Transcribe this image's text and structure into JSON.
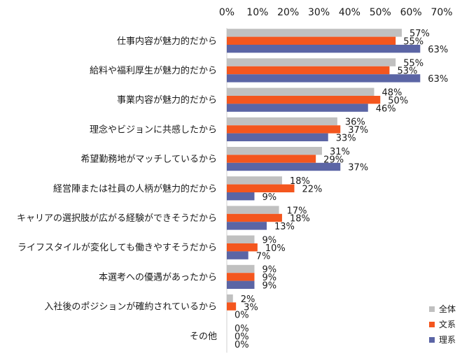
{
  "chart_data": {
    "type": "bar",
    "orientation": "horizontal",
    "title": "",
    "xlabel": "",
    "ylabel": "",
    "xlim": [
      0,
      70
    ],
    "x_ticks": [
      0,
      10,
      20,
      30,
      40,
      50,
      60,
      70
    ],
    "tick_suffix": "%",
    "tick_position": "top",
    "grid": false,
    "legend_position": "bottom-right",
    "categories": [
      "仕事内容が魅力的だから",
      "給料や福利厚生が魅力的だから",
      "事業内容が魅力的だから",
      "理念やビジョンに共感したから",
      "希望勤務地がマッチしているから",
      "経営陣または社員の人柄が魅力的だから",
      "キャリアの選択肢が広がる経験ができそうだから",
      "ライフスタイルが変化しても働きやすそうだから",
      "本選考への優遇があったから",
      "入社後のポジションが確約されているから",
      "その他"
    ],
    "series": [
      {
        "name": "全体",
        "color": "#c0c0c0",
        "values": [
          57,
          55,
          48,
          36,
          31,
          18,
          17,
          9,
          9,
          2,
          0
        ]
      },
      {
        "name": "文系",
        "color": "#f4561e",
        "values": [
          55,
          53,
          50,
          37,
          29,
          22,
          18,
          10,
          9,
          3,
          0
        ]
      },
      {
        "name": "理系",
        "color": "#5b65a5",
        "values": [
          63,
          63,
          46,
          33,
          37,
          9,
          13,
          7,
          9,
          0,
          0
        ]
      }
    ],
    "value_suffix": "%"
  }
}
